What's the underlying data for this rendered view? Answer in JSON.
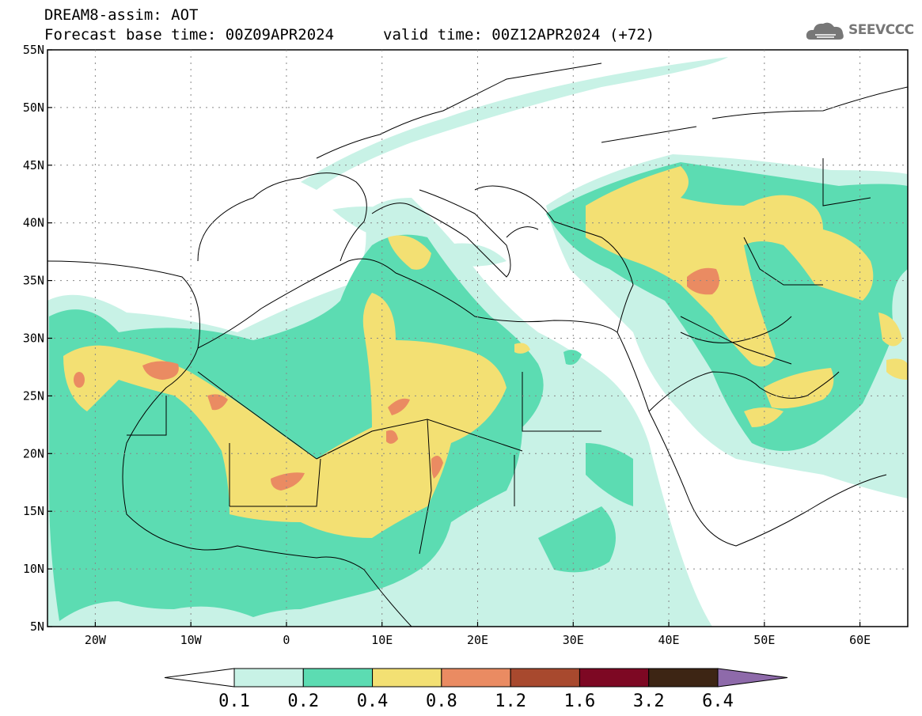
{
  "header": {
    "line1": "DREAM8-assim: AOT",
    "line2_base": "Forecast base time: 00Z09APR2024",
    "line2_valid": "valid time: 00Z12APR2024 (+72)"
  },
  "logo": {
    "text": "SEEVCCC",
    "icon": "cloud-icon"
  },
  "map": {
    "lat_ticks": [
      "55N",
      "50N",
      "45N",
      "40N",
      "35N",
      "30N",
      "25N",
      "20N",
      "15N",
      "10N",
      "5N"
    ],
    "lon_ticks": [
      "20W",
      "10W",
      "0",
      "10E",
      "20E",
      "30E",
      "40E",
      "50E",
      "60E"
    ],
    "lat_values": [
      55,
      50,
      45,
      40,
      35,
      30,
      25,
      20,
      15,
      10,
      5
    ],
    "lon_values": [
      -20,
      -10,
      0,
      10,
      20,
      30,
      40,
      50,
      60
    ],
    "extent": {
      "lon": [
        -25,
        65
      ],
      "lat": [
        5,
        55
      ]
    }
  },
  "colorbar": {
    "labels": [
      "0.1",
      "0.2",
      "0.4",
      "0.8",
      "1.2",
      "1.6",
      "3.2",
      "6.4"
    ],
    "colors": [
      "#ffffff",
      "#c8f2e6",
      "#5cdcb2",
      "#f3e073",
      "#ea8b62",
      "#a8492e",
      "#7d0823",
      "#3d2514",
      "#8e6aaa"
    ]
  }
}
